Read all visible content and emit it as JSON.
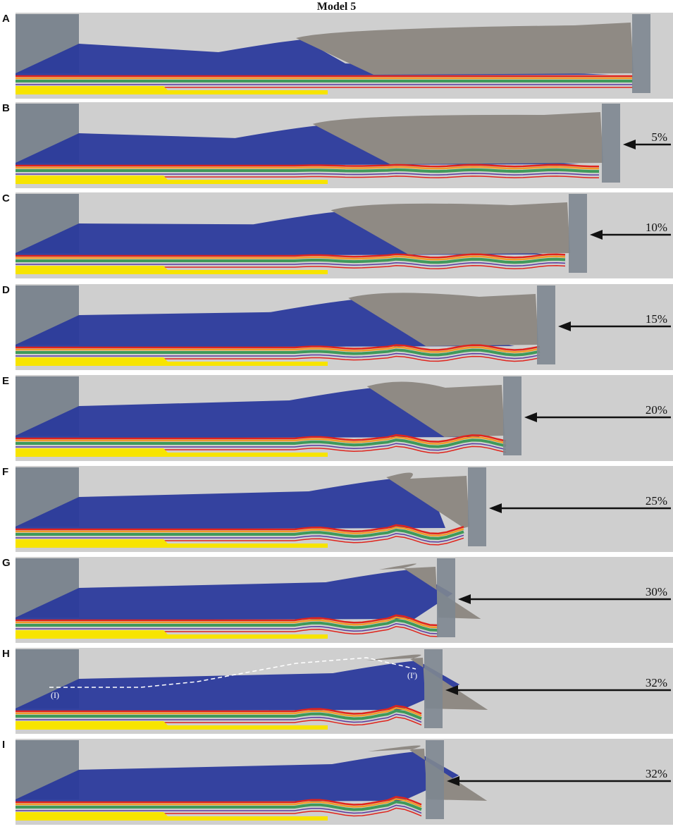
{
  "title": "Model 5",
  "panels": [
    {
      "label": "A",
      "shortening": "",
      "piston_x": 905
    },
    {
      "label": "B",
      "shortening": "5%",
      "piston_x": 862
    },
    {
      "label": "C",
      "shortening": "10%",
      "piston_x": 815
    },
    {
      "label": "D",
      "shortening": "15%",
      "piston_x": 770
    },
    {
      "label": "E",
      "shortening": "20%",
      "piston_x": 722
    },
    {
      "label": "F",
      "shortening": "25%",
      "piston_x": 672
    },
    {
      "label": "G",
      "shortening": "30%",
      "piston_x": 628
    },
    {
      "label": "H",
      "shortening": "32%",
      "piston_x": 610,
      "section_start": "(I)",
      "section_end": "(I')"
    },
    {
      "label": "I",
      "shortening": "32%",
      "piston_x": 612
    }
  ],
  "colors": {
    "panel_bg": "#cfcfcf",
    "water_blue": "#2b3a9c",
    "sand": "#8f8a84",
    "wall": "#7d8690",
    "yellow_layer": "#f7e400",
    "red_layer": "#e0241c",
    "orange_layer": "#f09a28",
    "green_layer": "#3f9a5a",
    "purple_layer": "#5a3aa0"
  },
  "icons": {
    "arrow": "left-arrow-icon"
  }
}
